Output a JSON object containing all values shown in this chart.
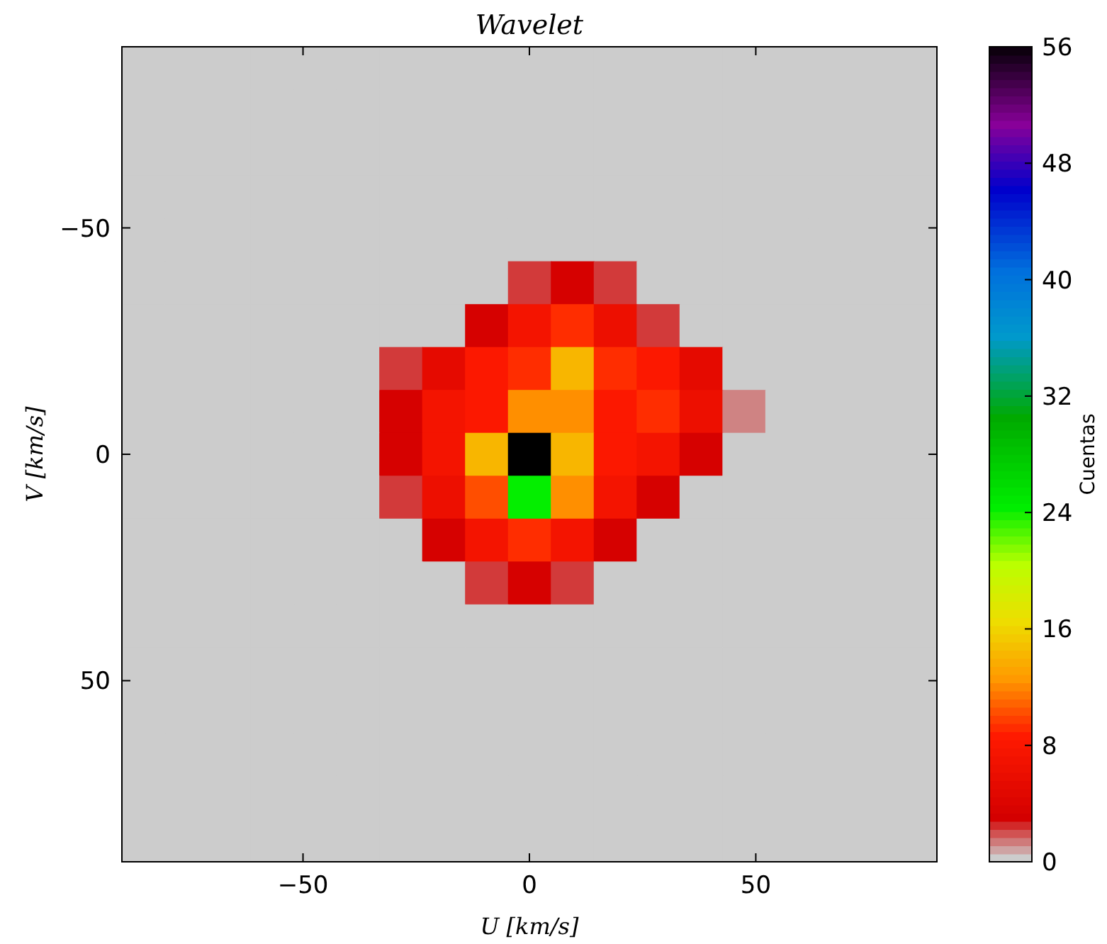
{
  "chart_data": {
    "type": "heatmap",
    "title": "Wavelet",
    "xlabel": "U [km/s]",
    "ylabel": "V [km/s]",
    "clabel": "Cuentas",
    "xlim": [
      -90,
      90
    ],
    "xticks": [
      -50,
      0,
      50
    ],
    "ylim": [
      90,
      -90
    ],
    "yticks": [
      -50,
      0,
      50
    ],
    "clim": [
      0,
      56
    ],
    "cticks": [
      0,
      8,
      16,
      24,
      32,
      40,
      48,
      56
    ],
    "cells": [
      [
        0,
        0,
        0,
        0,
        0,
        0,
        0,
        0,
        0,
        0,
        0,
        0,
        0,
        0,
        0,
        0,
        0,
        0,
        0
      ],
      [
        0,
        0,
        0,
        0,
        0,
        0,
        0,
        0,
        0,
        0,
        0,
        0,
        0,
        0,
        0,
        0,
        0,
        0,
        0
      ],
      [
        0,
        0,
        0,
        0,
        0,
        0,
        0,
        0,
        0,
        0,
        0,
        0,
        0,
        0,
        0,
        0,
        0,
        0,
        0
      ],
      [
        0,
        0,
        0,
        0,
        0,
        0,
        0,
        0,
        0,
        0,
        0,
        0,
        0,
        0,
        0,
        0,
        0,
        0,
        0
      ],
      [
        0,
        0,
        0,
        0,
        0,
        0,
        0,
        0,
        0,
        0,
        0,
        0,
        0,
        0,
        0,
        0,
        0,
        0,
        0
      ],
      [
        0,
        0,
        0,
        0,
        0,
        0,
        0,
        0,
        0,
        2,
        3,
        2,
        0,
        0,
        0,
        0,
        0,
        0,
        0
      ],
      [
        0,
        0,
        0,
        0,
        0,
        0,
        0,
        0,
        3,
        7,
        9,
        6,
        2,
        0,
        0,
        0,
        0,
        0,
        0
      ],
      [
        0,
        0,
        0,
        0,
        0,
        0,
        2,
        5,
        8,
        9,
        14,
        9,
        8,
        5,
        0,
        0,
        0,
        0,
        0
      ],
      [
        0,
        0,
        0,
        0,
        0,
        0,
        3,
        7,
        8,
        12,
        12,
        8,
        9,
        6,
        1,
        0,
        0,
        0,
        0
      ],
      [
        0,
        0,
        0,
        0,
        0,
        0,
        3,
        7,
        14,
        56,
        14,
        8,
        7,
        3,
        0,
        0,
        0,
        0,
        0
      ],
      [
        0,
        0,
        0,
        0,
        0,
        0,
        2,
        6,
        10,
        24,
        12,
        7,
        3,
        0,
        0,
        0,
        0,
        0,
        0
      ],
      [
        0,
        0,
        0,
        0,
        0,
        0,
        0,
        3,
        7,
        9,
        7,
        3,
        0,
        0,
        0,
        0,
        0,
        0,
        0
      ],
      [
        0,
        0,
        0,
        0,
        0,
        0,
        0,
        0,
        2,
        3,
        2,
        0,
        0,
        0,
        0,
        0,
        0,
        0,
        0
      ],
      [
        0,
        0,
        0,
        0,
        0,
        0,
        0,
        0,
        0,
        0,
        0,
        0,
        0,
        0,
        0,
        0,
        0,
        0,
        0
      ],
      [
        0,
        0,
        0,
        0,
        0,
        0,
        0,
        0,
        0,
        0,
        0,
        0,
        0,
        0,
        0,
        0,
        0,
        0,
        0
      ],
      [
        0,
        0,
        0,
        0,
        0,
        0,
        0,
        0,
        0,
        0,
        0,
        0,
        0,
        0,
        0,
        0,
        0,
        0,
        0
      ],
      [
        0,
        0,
        0,
        0,
        0,
        0,
        0,
        0,
        0,
        0,
        0,
        0,
        0,
        0,
        0,
        0,
        0,
        0,
        0
      ],
      [
        0,
        0,
        0,
        0,
        0,
        0,
        0,
        0,
        0,
        0,
        0,
        0,
        0,
        0,
        0,
        0,
        0,
        0,
        0
      ],
      [
        0,
        0,
        0,
        0,
        0,
        0,
        0,
        0,
        0,
        0,
        0,
        0,
        0,
        0,
        0,
        0,
        0,
        0,
        0
      ]
    ]
  }
}
